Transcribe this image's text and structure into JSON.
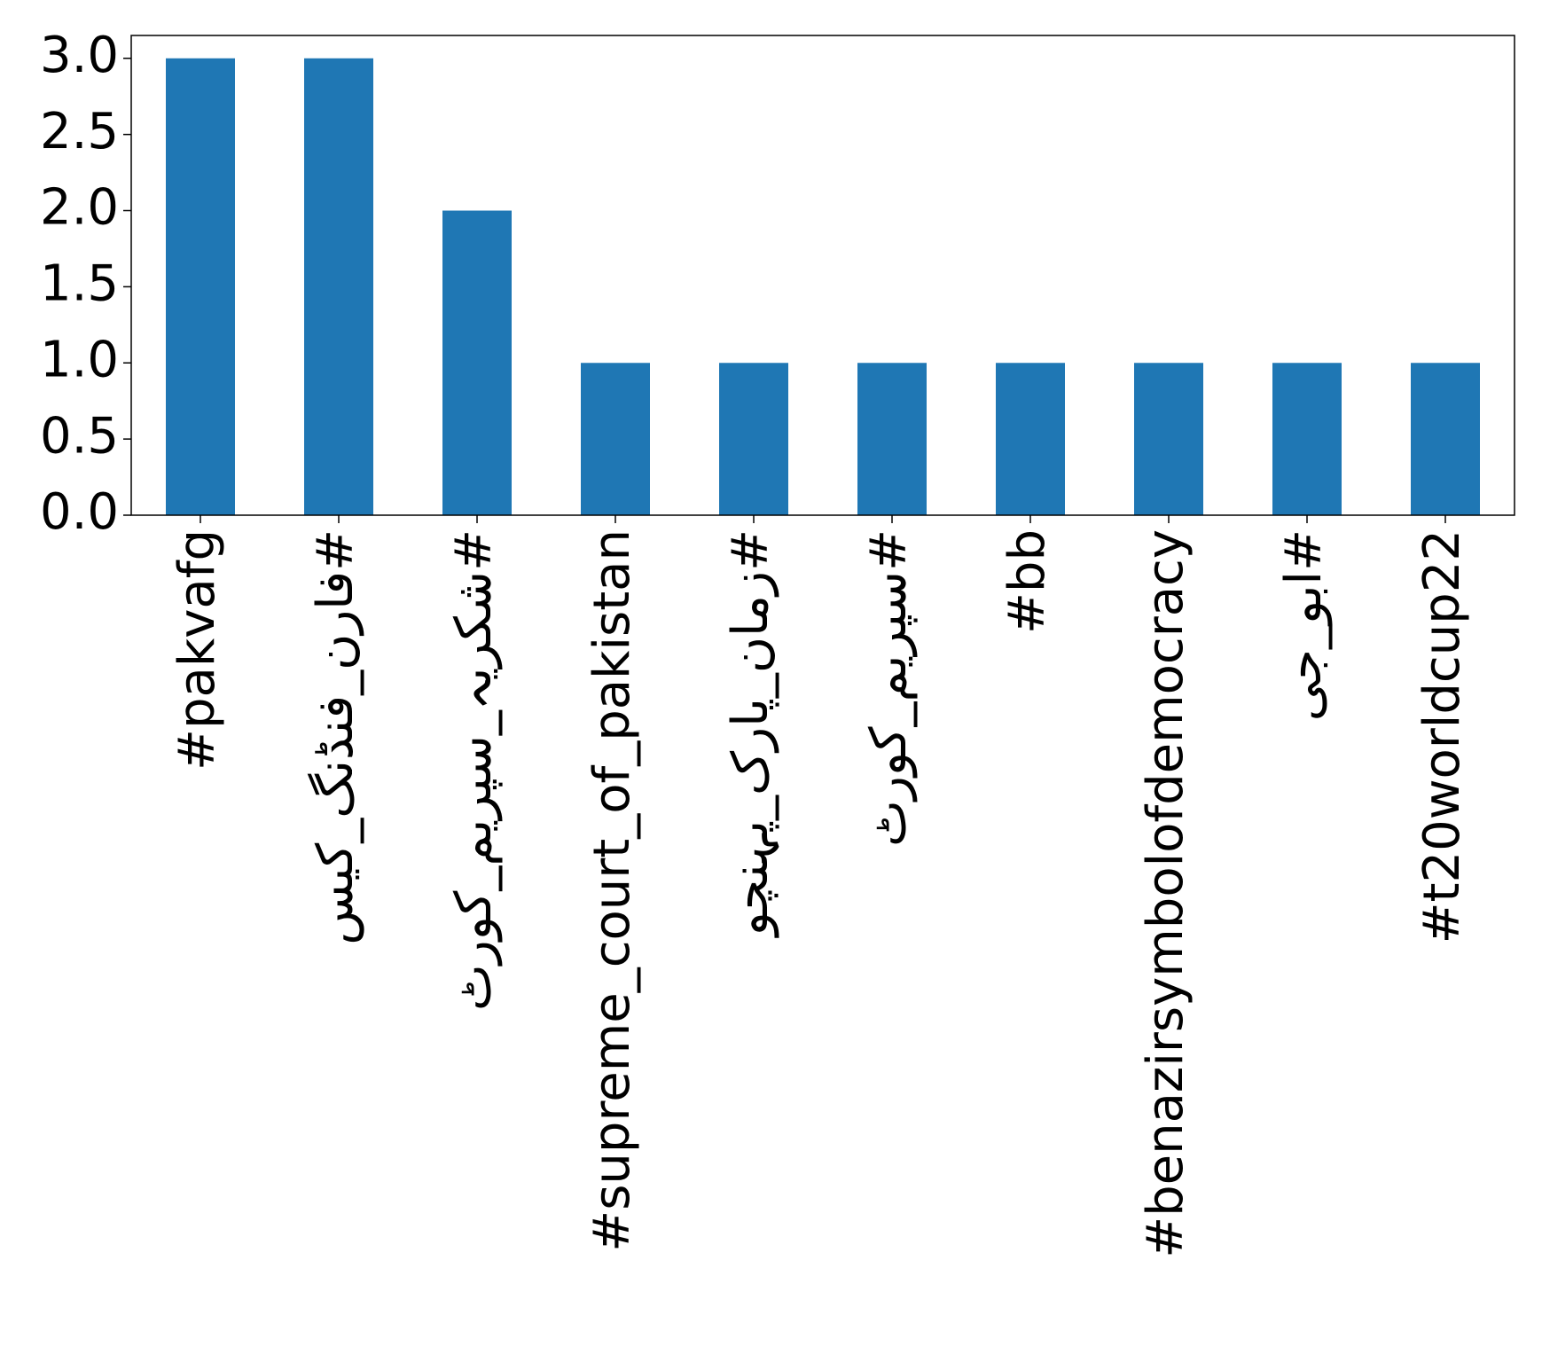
{
  "chart_data": {
    "type": "bar",
    "categories": [
      "#pakvafg",
      "#فارن_فنڈنگ_کیس",
      "#شکریہ_سپریم_کورٹ",
      "#supreme_court_of_pakistan",
      "#زمان_پارک_پہنچو",
      "#سپریم_کورٹ",
      "#bb",
      "#benazirsymbolofdemocracy",
      "#ابو_جی",
      "#t20worldcup22"
    ],
    "values": [
      3,
      3,
      2,
      1,
      1,
      1,
      1,
      1,
      1,
      1
    ],
    "color": "#1f77b4",
    "ylim": [
      0,
      3.15
    ],
    "yticks": [
      {
        "value": 0,
        "label": "0.0"
      },
      {
        "value": 0.5,
        "label": "0.5"
      },
      {
        "value": 1,
        "label": "1.0"
      },
      {
        "value": 1.5,
        "label": "1.5"
      },
      {
        "value": 2,
        "label": "2.0"
      },
      {
        "value": 2.5,
        "label": "2.5"
      },
      {
        "value": 3,
        "label": "3.0"
      }
    ],
    "grid": false
  }
}
